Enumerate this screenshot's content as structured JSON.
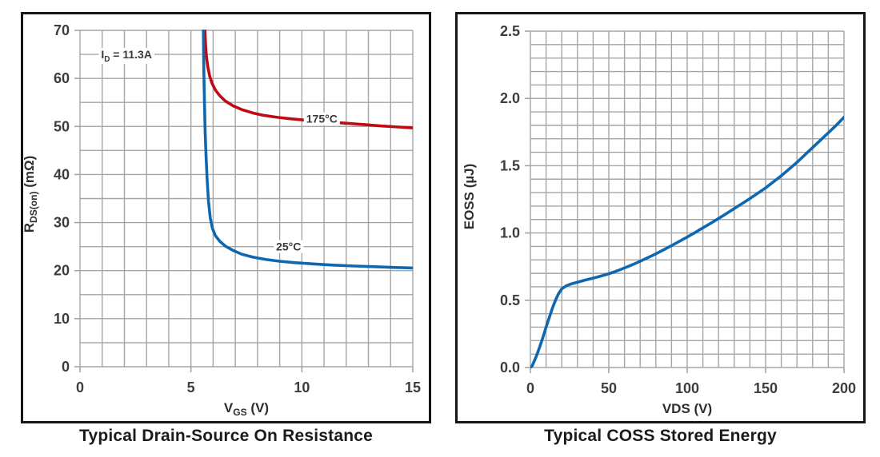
{
  "style": {
    "background": "#ffffff",
    "panel_border": "#161616",
    "grid_color": "#a5a5a5",
    "tick_text_color": "#3d3d3d",
    "axis_text_color": "#2e2e2e",
    "annotation_text_color": "#3a3a3a",
    "title_text_color": "#1b1b1b",
    "curve_red": "#bf0a12",
    "curve_blue": "#0e67b1"
  },
  "chart_data": [
    {
      "type": "line",
      "title": "Typical Drain-Source On Resistance",
      "xlabel": {
        "parts": [
          {
            "t": "V"
          },
          {
            "t": "GS",
            "sub": true
          },
          {
            "t": " (V)"
          }
        ]
      },
      "ylabel": {
        "parts": [
          {
            "t": "R"
          },
          {
            "t": "DS(on)",
            "sub": true
          },
          {
            "t": " (mΩ)"
          }
        ]
      },
      "xlim": [
        0,
        15
      ],
      "ylim": [
        0,
        70
      ],
      "x_minor": 1,
      "y_minor": 5,
      "grid": true,
      "legend": "none",
      "x_ticks": {
        "values": [
          0,
          5,
          10,
          15
        ],
        "labels": [
          "0",
          "5",
          "10",
          "15"
        ]
      },
      "y_ticks": {
        "values": [
          0,
          10,
          20,
          30,
          40,
          50,
          60,
          70
        ],
        "labels": [
          "0",
          "10",
          "20",
          "30",
          "40",
          "50",
          "60",
          "70"
        ]
      },
      "series": [
        {
          "name": "175°C",
          "color": "#bf0a12",
          "points": [
            [
              5.63,
              70
            ],
            [
              5.66,
              67
            ],
            [
              5.7,
              64.5
            ],
            [
              5.76,
              62.4
            ],
            [
              5.84,
              60.6
            ],
            [
              5.95,
              59
            ],
            [
              6.1,
              57.6
            ],
            [
              6.3,
              56.4
            ],
            [
              6.55,
              55.3
            ],
            [
              6.9,
              54.3
            ],
            [
              7.3,
              53.5
            ],
            [
              7.8,
              52.8
            ],
            [
              8.3,
              52.3
            ],
            [
              8.9,
              51.9
            ],
            [
              9.5,
              51.6
            ],
            [
              10.2,
              51.3
            ],
            [
              11,
              51
            ],
            [
              11.9,
              50.7
            ],
            [
              12.8,
              50.4
            ],
            [
              13.6,
              50.1
            ],
            [
              14.3,
              49.9
            ],
            [
              15,
              49.7
            ]
          ]
        },
        {
          "name": "25°C",
          "color": "#0e67b1",
          "points": [
            [
              5.56,
              70
            ],
            [
              5.58,
              62
            ],
            [
              5.61,
              55
            ],
            [
              5.64,
              49
            ],
            [
              5.68,
              44
            ],
            [
              5.73,
              39
            ],
            [
              5.79,
              34.5
            ],
            [
              5.87,
              31
            ],
            [
              5.97,
              28.8
            ],
            [
              6.1,
              27.3
            ],
            [
              6.3,
              26.1
            ],
            [
              6.55,
              25.1
            ],
            [
              6.9,
              24.2
            ],
            [
              7.3,
              23.4
            ],
            [
              7.8,
              22.8
            ],
            [
              8.4,
              22.3
            ],
            [
              9,
              21.95
            ],
            [
              9.7,
              21.65
            ],
            [
              10.5,
              21.4
            ],
            [
              11.4,
              21.15
            ],
            [
              12.4,
              20.95
            ],
            [
              13.4,
              20.8
            ],
            [
              14.2,
              20.65
            ],
            [
              15,
              20.55
            ]
          ]
        }
      ],
      "annotations": [
        {
          "parts": [
            {
              "t": "I"
            },
            {
              "t": "D",
              "sub": true
            },
            {
              "t": " = 11.3A"
            }
          ],
          "x": 0.95,
          "y": 65,
          "anchor": "start",
          "bg": true
        },
        {
          "parts": [
            {
              "t": "175°C"
            }
          ],
          "x": 10.9,
          "y": 51.6,
          "anchor": "middle",
          "bg": true
        },
        {
          "parts": [
            {
              "t": "25°C"
            }
          ],
          "x": 9.4,
          "y": 25,
          "anchor": "middle",
          "bg": true
        }
      ]
    },
    {
      "type": "line",
      "title": "Typical COSS Stored Energy",
      "xlabel": {
        "parts": [
          {
            "t": "VDS (V)"
          }
        ]
      },
      "ylabel": {
        "parts": [
          {
            "t": "EOSS (µJ)"
          }
        ]
      },
      "xlim": [
        0,
        200
      ],
      "ylim": [
        0,
        2.5
      ],
      "x_minor": 10,
      "y_minor": 0.1,
      "grid": true,
      "legend": "none",
      "x_ticks": {
        "values": [
          0,
          50,
          100,
          150,
          200
        ],
        "labels": [
          "0",
          "50",
          "100",
          "150",
          "200"
        ]
      },
      "y_ticks": {
        "values": [
          0,
          0.5,
          1,
          1.5,
          2,
          2.5
        ],
        "labels": [
          "0.0",
          "0.5",
          "1.0",
          "1.5",
          "2.0",
          "2.5"
        ]
      },
      "series": [
        {
          "name": "EOSS",
          "color": "#0e67b1",
          "points": [
            [
              0,
              0
            ],
            [
              1,
              0.01
            ],
            [
              2,
              0.035
            ],
            [
              4,
              0.09
            ],
            [
              6,
              0.155
            ],
            [
              8,
              0.225
            ],
            [
              10,
              0.3
            ],
            [
              12,
              0.37
            ],
            [
              14,
              0.44
            ],
            [
              16,
              0.5
            ],
            [
              18,
              0.55
            ],
            [
              20,
              0.585
            ],
            [
              23,
              0.608
            ],
            [
              26,
              0.621
            ],
            [
              30,
              0.634
            ],
            [
              35,
              0.65
            ],
            [
              40,
              0.664
            ],
            [
              45,
              0.68
            ],
            [
              50,
              0.697
            ],
            [
              55,
              0.717
            ],
            [
              60,
              0.74
            ],
            [
              65,
              0.764
            ],
            [
              70,
              0.79
            ],
            [
              75,
              0.817
            ],
            [
              80,
              0.845
            ],
            [
              85,
              0.875
            ],
            [
              90,
              0.906
            ],
            [
              95,
              0.938
            ],
            [
              100,
              0.97
            ],
            [
              105,
              1.003
            ],
            [
              110,
              1.038
            ],
            [
              115,
              1.072
            ],
            [
              120,
              1.108
            ],
            [
              125,
              1.144
            ],
            [
              130,
              1.182
            ],
            [
              135,
              1.218
            ],
            [
              140,
              1.256
            ],
            [
              145,
              1.295
            ],
            [
              150,
              1.335
            ],
            [
              155,
              1.38
            ],
            [
              160,
              1.425
            ],
            [
              165,
              1.475
            ],
            [
              170,
              1.525
            ],
            [
              175,
              1.58
            ],
            [
              180,
              1.635
            ],
            [
              185,
              1.69
            ],
            [
              190,
              1.745
            ],
            [
              195,
              1.8
            ],
            [
              200,
              1.86
            ]
          ]
        }
      ],
      "annotations": []
    }
  ]
}
